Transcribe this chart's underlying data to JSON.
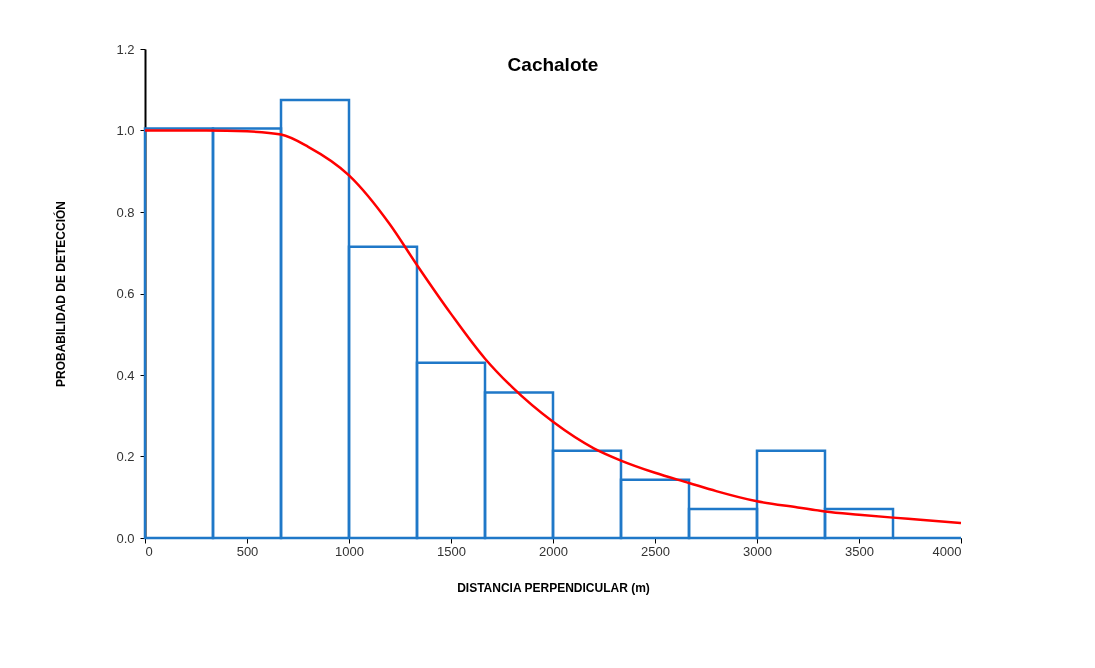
{
  "chart_data": {
    "type": "histogram",
    "title": "Cachalote",
    "xlabel": "DISTANCIA PERPENDICULAR (m)",
    "ylabel": "PROBABILIDAD DE DETECCIÓN",
    "xlim": [
      0,
      4000
    ],
    "xticks": [
      0,
      500,
      1000,
      1500,
      2000,
      2500,
      3000,
      3500,
      4000
    ],
    "ylim": [
      0,
      1.2
    ],
    "yticks": [
      {
        "value": 0,
        "label": "0.0"
      },
      {
        "value": 0.2,
        "label": "0.2"
      },
      {
        "value": 0.4,
        "label": "0.4"
      },
      {
        "value": 0.6,
        "label": "0.6"
      },
      {
        "value": 0.8,
        "label": "0.8"
      },
      {
        "value": 1,
        "label": "1.0"
      },
      {
        "value": 1.2,
        "label": "1.2"
      }
    ],
    "grid": false,
    "series": [
      {
        "color": "#1f78c8",
        "bins": [
          0,
          333.3,
          666.7,
          1000,
          1333.3,
          1666.7,
          2000,
          2333.3,
          2666.7,
          3000,
          3333.3,
          3666.7,
          4000
        ],
        "values": [
          1.005,
          1.005,
          1.075,
          0.715,
          0.43,
          0.357,
          0.214,
          0.143,
          0.071,
          0.214,
          0.071,
          0
        ]
      },
      {
        "type": "line",
        "color": "#ff0000",
        "x": [
          0,
          300,
          500,
          667,
          800,
          1000,
          1200,
          1333,
          1500,
          1667,
          1800,
          2000,
          2200,
          2333,
          2500,
          2667,
          2800,
          3000,
          3200,
          3333,
          3500,
          3667,
          3800,
          4000
        ],
        "values": [
          1.0,
          1.0,
          0.998,
          0.99,
          0.96,
          0.89,
          0.77,
          0.67,
          0.55,
          0.44,
          0.37,
          0.285,
          0.22,
          0.19,
          0.16,
          0.135,
          0.115,
          0.09,
          0.075,
          0.065,
          0.057,
          0.05,
          0.045,
          0.037
        ]
      }
    ]
  }
}
